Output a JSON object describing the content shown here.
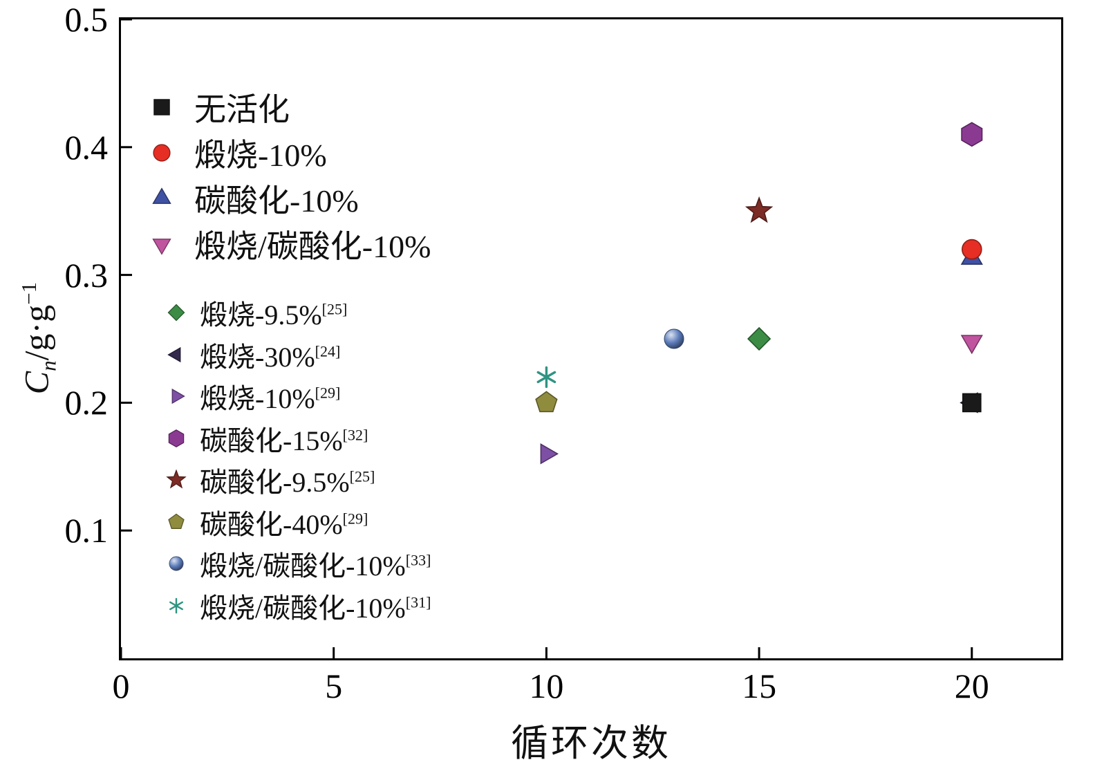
{
  "chart_data": {
    "type": "scatter",
    "title": "",
    "xlabel": "循环次数",
    "ylabel": "Cn/g·g−1",
    "ylabel_parts": {
      "symbol": "C",
      "symbol_sub": "n",
      "units": "/g·g",
      "units_sup": "−1"
    },
    "xlim": [
      0,
      22.1
    ],
    "ylim": [
      0,
      0.5
    ],
    "x_ticks": [
      0,
      5,
      10,
      15,
      20
    ],
    "y_ticks": [
      0.1,
      0.2,
      0.3,
      0.4,
      0.5
    ],
    "grid": false,
    "legend_position": "upper-left-inside",
    "axis_color": "#000000",
    "series": [
      {
        "name": "无活化",
        "ref": "",
        "marker": "square",
        "color": "#1a1a1a",
        "points": [
          [
            20,
            0.2
          ]
        ]
      },
      {
        "name": "煅烧-10%",
        "ref": "",
        "marker": "circle",
        "color": "#e62e24",
        "points": [
          [
            20,
            0.32
          ]
        ]
      },
      {
        "name": "碳酸化-10%",
        "ref": "",
        "marker": "triangle-up",
        "color": "#3f51a3",
        "points": [
          [
            20,
            0.313
          ]
        ]
      },
      {
        "name": "煅烧/碳酸化-10%",
        "ref": "",
        "marker": "triangle-down",
        "color": "#c0549f",
        "points": [
          [
            20,
            0.248
          ]
        ]
      },
      {
        "name": "煅烧-9.5%",
        "ref": "[25]",
        "marker": "diamond",
        "color": "#3c8c46",
        "points": [
          [
            15,
            0.25
          ]
        ]
      },
      {
        "name": "煅烧-30%",
        "ref": "[24]",
        "marker": "triangle-left",
        "color": "#33294d",
        "points": [
          [
            20,
            0.2
          ]
        ]
      },
      {
        "name": "煅烧-10%",
        "ref": "[29]",
        "marker": "triangle-right",
        "color": "#7d4fa5",
        "points": [
          [
            10,
            0.16
          ]
        ]
      },
      {
        "name": "碳酸化-15%",
        "ref": "[32]",
        "marker": "hexagon",
        "color": "#8b3a92",
        "points": [
          [
            20,
            0.41
          ]
        ]
      },
      {
        "name": "碳酸化-9.5%",
        "ref": "[25]",
        "marker": "star",
        "color": "#7d2b25",
        "points": [
          [
            15,
            0.35
          ]
        ]
      },
      {
        "name": "碳酸化-40%",
        "ref": "[29]",
        "marker": "pentagon",
        "color": "#8f8c3e",
        "points": [
          [
            10,
            0.2
          ]
        ]
      },
      {
        "name": "煅烧/碳酸化-10%",
        "ref": "[33]",
        "marker": "sphere",
        "color": "#5c7cbb",
        "points": [
          [
            13,
            0.25
          ]
        ]
      },
      {
        "name": "煅烧/碳酸化-10%",
        "ref": "[31]",
        "marker": "asterisk",
        "color": "#2f9482",
        "points": [
          [
            10,
            0.22
          ]
        ]
      }
    ],
    "legend_groups": [
      [
        0,
        1,
        2,
        3
      ],
      [
        4,
        5,
        6,
        7,
        8,
        9,
        10,
        11
      ]
    ]
  }
}
